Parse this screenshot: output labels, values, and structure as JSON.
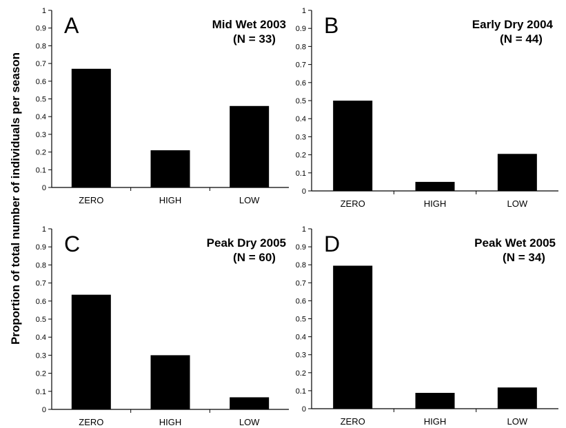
{
  "ylabel": "Proportion of total number of individuals per season",
  "chart_data": [
    {
      "type": "bar",
      "panel": "A",
      "title": "Mid Wet 2003",
      "n_label": "(N = 33)",
      "categories": [
        "ZERO",
        "HIGH",
        "LOW"
      ],
      "values": [
        0.67,
        0.21,
        0.46
      ],
      "ylim": [
        0,
        1
      ],
      "yticks": [
        "0",
        "0.1",
        "0.2",
        "0.3",
        "0.4",
        "0.5",
        "0.6",
        "0.7",
        "0.8",
        "0.9",
        "1"
      ],
      "bar_color": "#000000"
    },
    {
      "type": "bar",
      "panel": "B",
      "title": "Early Dry 2004",
      "n_label": "(N = 44)",
      "categories": [
        "ZERO",
        "HIGH",
        "LOW"
      ],
      "values": [
        0.5,
        0.05,
        0.205
      ],
      "ylim": [
        0,
        1
      ],
      "yticks": [
        "0",
        "0.1",
        "0.2",
        "0.3",
        "0.4",
        "0.5",
        "0.6",
        "0.7",
        "0.8",
        "0.9",
        "1"
      ],
      "bar_color": "#000000"
    },
    {
      "type": "bar",
      "panel": "C",
      "title": "Peak Dry 2005",
      "n_label": "(N = 60)",
      "categories": [
        "ZERO",
        "HIGH",
        "LOW"
      ],
      "values": [
        0.635,
        0.3,
        0.067
      ],
      "ylim": [
        0,
        1
      ],
      "yticks": [
        "0",
        "0.1",
        "0.2",
        "0.3",
        "0.4",
        "0.5",
        "0.6",
        "0.7",
        "0.8",
        "0.9",
        "1"
      ],
      "bar_color": "#000000"
    },
    {
      "type": "bar",
      "panel": "D",
      "title": "Peak Wet 2005",
      "n_label": "(N = 34)",
      "categories": [
        "ZERO",
        "HIGH",
        "LOW"
      ],
      "values": [
        0.795,
        0.088,
        0.118
      ],
      "ylim": [
        0,
        1
      ],
      "yticks": [
        "0",
        "0.1",
        "0.2",
        "0.3",
        "0.4",
        "0.5",
        "0.6",
        "0.7",
        "0.8",
        "0.9",
        "1"
      ],
      "bar_color": "#000000"
    }
  ]
}
